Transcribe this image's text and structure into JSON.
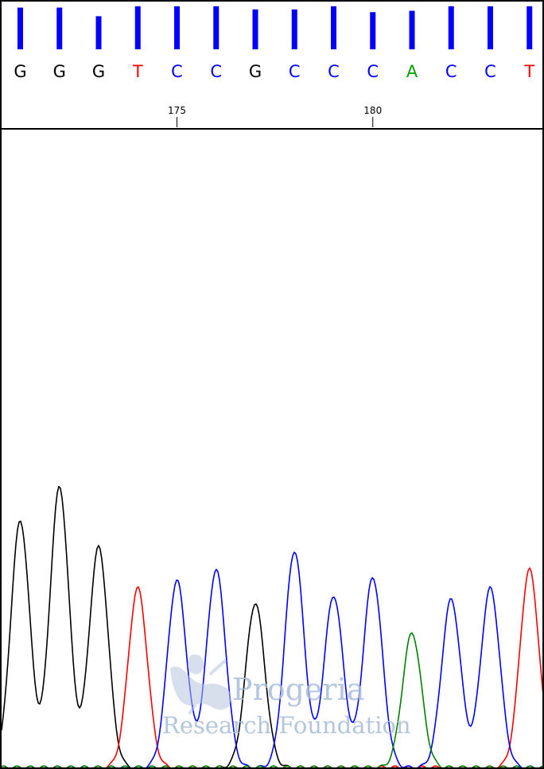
{
  "chart_data": {
    "type": "line",
    "title": "",
    "xlabel": "",
    "ylabel": "",
    "base_calls": [
      {
        "base": "G",
        "position": 171,
        "quality": 0.92
      },
      {
        "base": "G",
        "position": 172,
        "quality": 0.92
      },
      {
        "base": "G",
        "position": 173,
        "quality": 0.73
      },
      {
        "base": "T",
        "position": 174,
        "quality": 0.95
      },
      {
        "base": "C",
        "position": 175,
        "quality": 0.95
      },
      {
        "base": "C",
        "position": 176,
        "quality": 0.95
      },
      {
        "base": "G",
        "position": 177,
        "quality": 0.88
      },
      {
        "base": "C",
        "position": 178,
        "quality": 0.88
      },
      {
        "base": "C",
        "position": 179,
        "quality": 0.95
      },
      {
        "base": "C",
        "position": 180,
        "quality": 0.82
      },
      {
        "base": "A",
        "position": 181,
        "quality": 0.85
      },
      {
        "base": "C",
        "position": 182,
        "quality": 0.95
      },
      {
        "base": "C",
        "position": 183,
        "quality": 0.95
      },
      {
        "base": "T",
        "position": 184,
        "quality": 0.95
      }
    ],
    "position_ticks": [
      "175",
      "180"
    ],
    "base_colors": {
      "G": "#000000",
      "C": "#0000ff",
      "A": "#00a000",
      "T": "#ff0000",
      "quality_bar": "#0000ff"
    },
    "series": [
      {
        "channel": "G",
        "color": "#000000",
        "peaks": [
          {
            "position": 171,
            "height": 0.66
          },
          {
            "position": 172,
            "height": 0.75
          },
          {
            "position": 173,
            "height": 0.59
          },
          {
            "position": 177,
            "height": 0.44
          }
        ]
      },
      {
        "channel": "T",
        "color": "#ff0000",
        "peaks": [
          {
            "position": 174,
            "height": 0.48
          },
          {
            "position": 184,
            "height": 0.53
          }
        ]
      },
      {
        "channel": "C",
        "color": "#0000ff",
        "peaks": [
          {
            "position": 175,
            "height": 0.5
          },
          {
            "position": 176,
            "height": 0.53
          },
          {
            "position": 178,
            "height": 0.58
          },
          {
            "position": 179,
            "height": 0.46
          },
          {
            "position": 180,
            "height": 0.51
          },
          {
            "position": 182,
            "height": 0.45
          },
          {
            "position": 183,
            "height": 0.48
          }
        ]
      },
      {
        "channel": "A",
        "color": "#008000",
        "peaks": [
          {
            "position": 181,
            "height": 0.36
          }
        ]
      }
    ]
  },
  "watermark": {
    "line1": "Progeria",
    "line2": "Research Foundation",
    "color": "#a8bcd9"
  }
}
